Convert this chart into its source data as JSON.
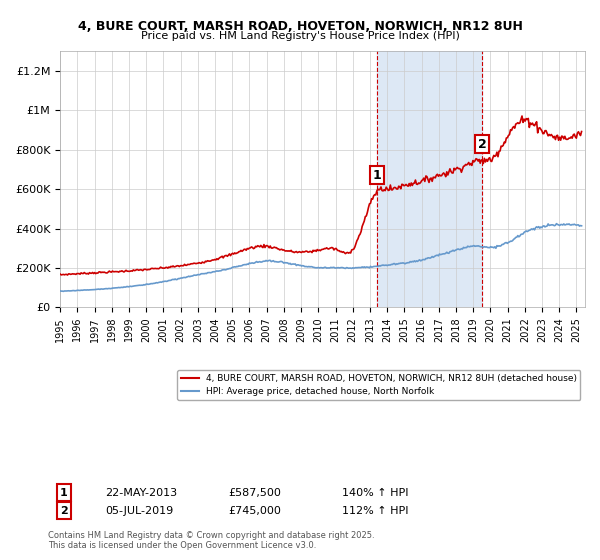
{
  "title": "4, BURE COURT, MARSH ROAD, HOVETON, NORWICH, NR12 8UH",
  "subtitle": "Price paid vs. HM Land Registry's House Price Index (HPI)",
  "legend_line1": "4, BURE COURT, MARSH ROAD, HOVETON, NORWICH, NR12 8UH (detached house)",
  "legend_line2": "HPI: Average price, detached house, North Norfolk",
  "annotation1_date": "22-MAY-2013",
  "annotation1_price": "£587,500",
  "annotation1_hpi": "140% ↑ HPI",
  "annotation2_date": "05-JUL-2019",
  "annotation2_price": "£745,000",
  "annotation2_hpi": "112% ↑ HPI",
  "footer": "Contains HM Land Registry data © Crown copyright and database right 2025.\nThis data is licensed under the Open Government Licence v3.0.",
  "xmin": 1995.0,
  "xmax": 2025.5,
  "ymin": 0,
  "ymax": 1300000,
  "yticks": [
    0,
    200000,
    400000,
    600000,
    800000,
    1000000,
    1200000
  ],
  "ytick_labels": [
    "£0",
    "£200K",
    "£400K",
    "£600K",
    "£800K",
    "£1M",
    "£1.2M"
  ],
  "red_color": "#cc0000",
  "blue_color": "#6699cc",
  "shade_color": "#dde8f5",
  "marker1_x": 2013.39,
  "marker2_x": 2019.51,
  "marker1_y": 587500,
  "marker2_y": 745000,
  "background_color": "#f5f5f5"
}
